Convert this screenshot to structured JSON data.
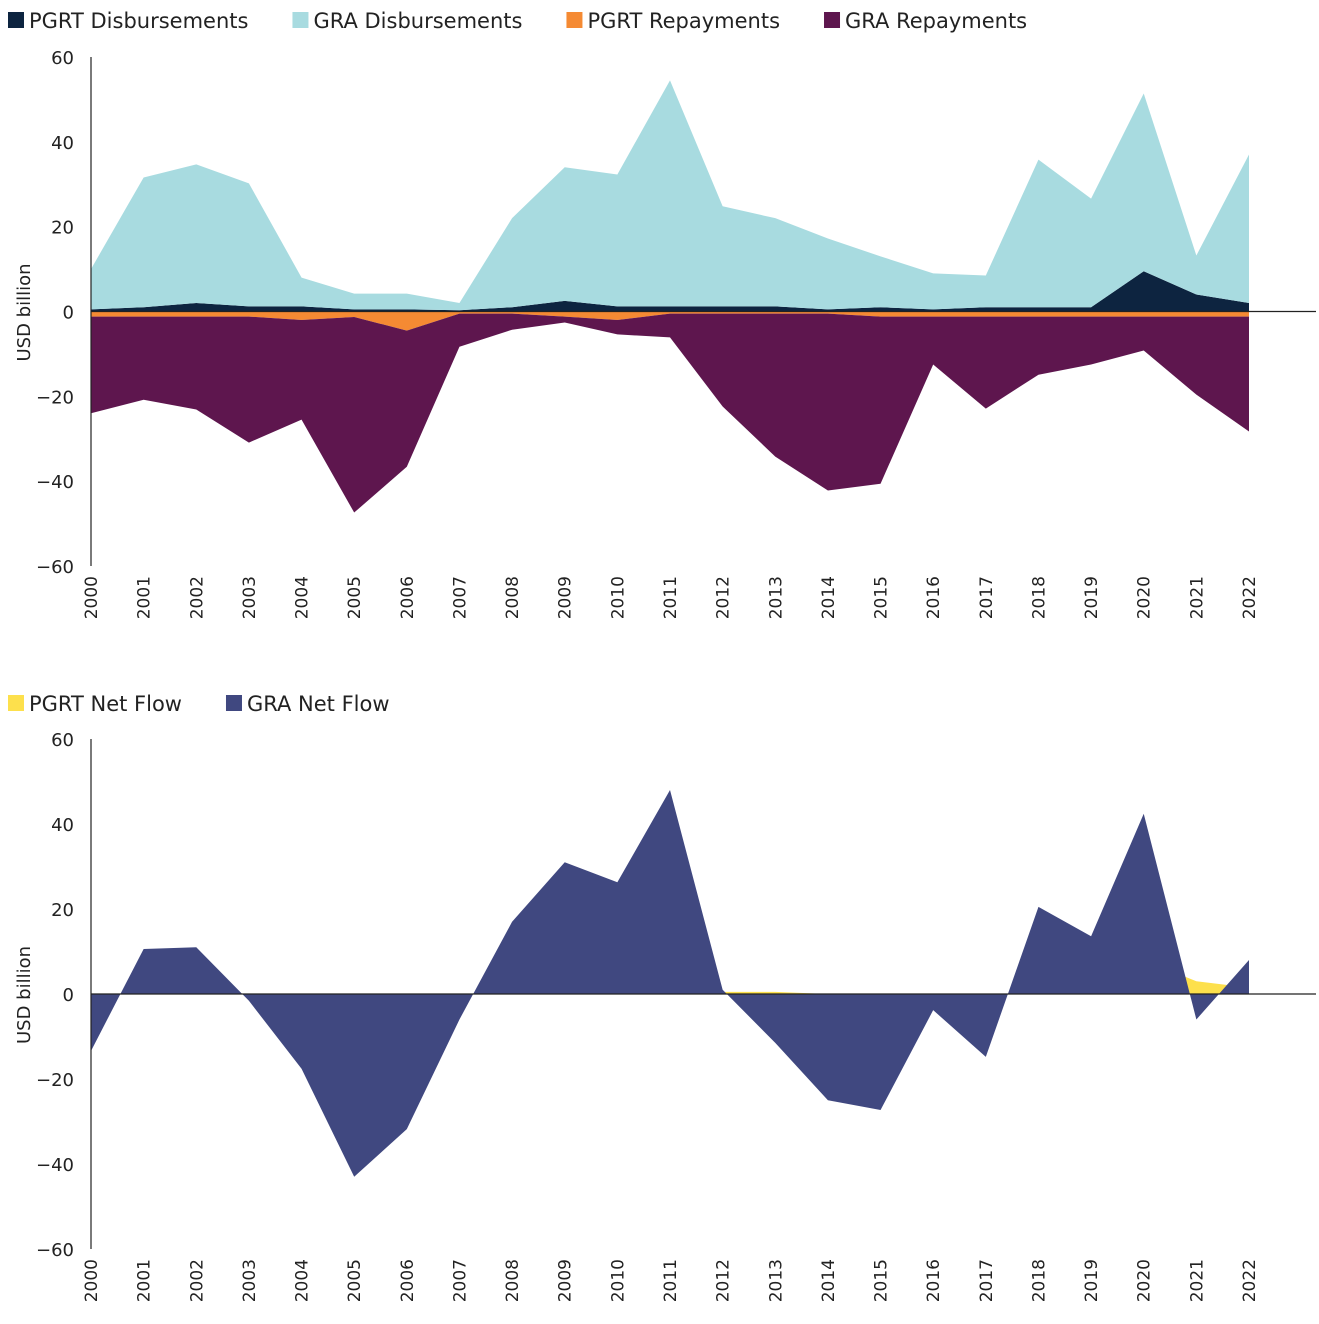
{
  "chart_data": [
    {
      "type": "area",
      "stacked": true,
      "ylabel": "USD billion",
      "categories": [
        "2000",
        "2001",
        "2002",
        "2003",
        "2004",
        "2005",
        "2006",
        "2007",
        "2008",
        "2009",
        "2010",
        "2011",
        "2012",
        "2013",
        "2014",
        "2015",
        "2016",
        "2017",
        "2018",
        "2019",
        "2020",
        "2021",
        "2022"
      ],
      "ylim": [
        -60,
        60
      ],
      "yticks": [
        {
          "value": -60,
          "label": "−60"
        },
        {
          "value": -40,
          "label": "−40"
        },
        {
          "value": -20,
          "label": "−20"
        },
        0,
        20,
        40,
        60
      ],
      "legend": "top-left",
      "series": [
        {
          "name": "PGRT Disbursements",
          "color": "#0d2440",
          "values": [
            0.5,
            1,
            2,
            1.2,
            1.2,
            0.5,
            0.5,
            0.3,
            1,
            2.5,
            1.2,
            1.2,
            1.2,
            1.2,
            0.5,
            1,
            0.5,
            1,
            1,
            1,
            9.5,
            4,
            2
          ]
        },
        {
          "name": "GRA Disbursements",
          "color": "#a8dbe0",
          "values": [
            9.5,
            30.6,
            32.7,
            29,
            6.8,
            3.7,
            3.7,
            1.7,
            21,
            31.5,
            31.1,
            53.3,
            23.6,
            20.8,
            16.7,
            12,
            8.5,
            7.5,
            34.8,
            25.6,
            41.9,
            9.2,
            35
          ]
        },
        {
          "name": "PGRT Repayments",
          "color": "#f58a33",
          "values": [
            -1.2,
            -1.2,
            -1.2,
            -1.2,
            -2,
            -1.3,
            -4.5,
            -0.5,
            -0.5,
            -1.2,
            -2,
            -0.5,
            -0.5,
            -0.5,
            -0.5,
            -1.2,
            -1.2,
            -1.2,
            -1.2,
            -1.2,
            -1.2,
            -1.2,
            -1.2
          ]
        },
        {
          "name": "GRA Repayments",
          "color": "#5e164e",
          "values": [
            -22.8,
            -19.6,
            -21.9,
            -29.7,
            -23.5,
            -46.1,
            -32.1,
            -7.8,
            -3.8,
            -1.4,
            -3.4,
            -5.6,
            -21.9,
            -33.7,
            -41.7,
            -39.4,
            -11.3,
            -21.7,
            -13.7,
            -11.3,
            -8,
            -18.4,
            -27.1
          ]
        }
      ]
    },
    {
      "type": "area",
      "stacked": false,
      "ylabel": "USD billion",
      "categories": [
        "2000",
        "2001",
        "2002",
        "2003",
        "2004",
        "2005",
        "2006",
        "2007",
        "2008",
        "2009",
        "2010",
        "2011",
        "2012",
        "2013",
        "2014",
        "2015",
        "2016",
        "2017",
        "2018",
        "2019",
        "2020",
        "2021",
        "2022"
      ],
      "ylim": [
        -60,
        60
      ],
      "yticks": [
        {
          "value": -60,
          "label": "−60"
        },
        {
          "value": -40,
          "label": "−40"
        },
        {
          "value": -20,
          "label": "−20"
        },
        0,
        20,
        40,
        60
      ],
      "legend": "top-left",
      "series": [
        {
          "name": "PGRT Net Flow",
          "color": "#fde04c",
          "values": [
            0,
            0,
            0.5,
            0,
            0,
            -0.8,
            -3,
            0,
            0.5,
            1.5,
            0,
            1,
            0.5,
            0.5,
            0,
            0,
            -0.5,
            0,
            0,
            0.3,
            8,
            3,
            1.5
          ]
        },
        {
          "name": "GRA Net Flow",
          "color": "#404880",
          "values": [
            -13.4,
            10.6,
            11,
            -1.6,
            -17.6,
            -43,
            -31.8,
            -6,
            17,
            31,
            26.3,
            48,
            1,
            -11.5,
            -25,
            -27.3,
            -3.8,
            -14.8,
            20.5,
            13.6,
            42.4,
            -6,
            8
          ]
        }
      ]
    }
  ]
}
